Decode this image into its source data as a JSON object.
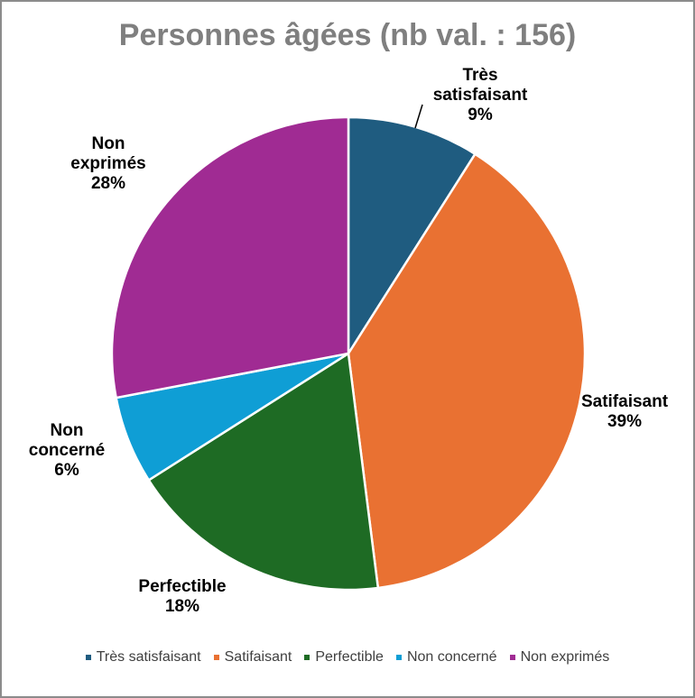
{
  "chart_data": {
    "type": "pie",
    "title": "Personnes âgées (nb val. : 156)",
    "categories": [
      "Très satisfaisant",
      "Satifaisant",
      "Perfectible",
      "Non concerné",
      "Non exprimés"
    ],
    "values": [
      9,
      39,
      18,
      6,
      28
    ],
    "value_labels": [
      "9%",
      "39%",
      "18%",
      "6%",
      "28%"
    ],
    "colors": [
      "#1f5c80",
      "#e97132",
      "#1e6b24",
      "#0f9ed5",
      "#a02b93"
    ],
    "legend": "bottom"
  }
}
